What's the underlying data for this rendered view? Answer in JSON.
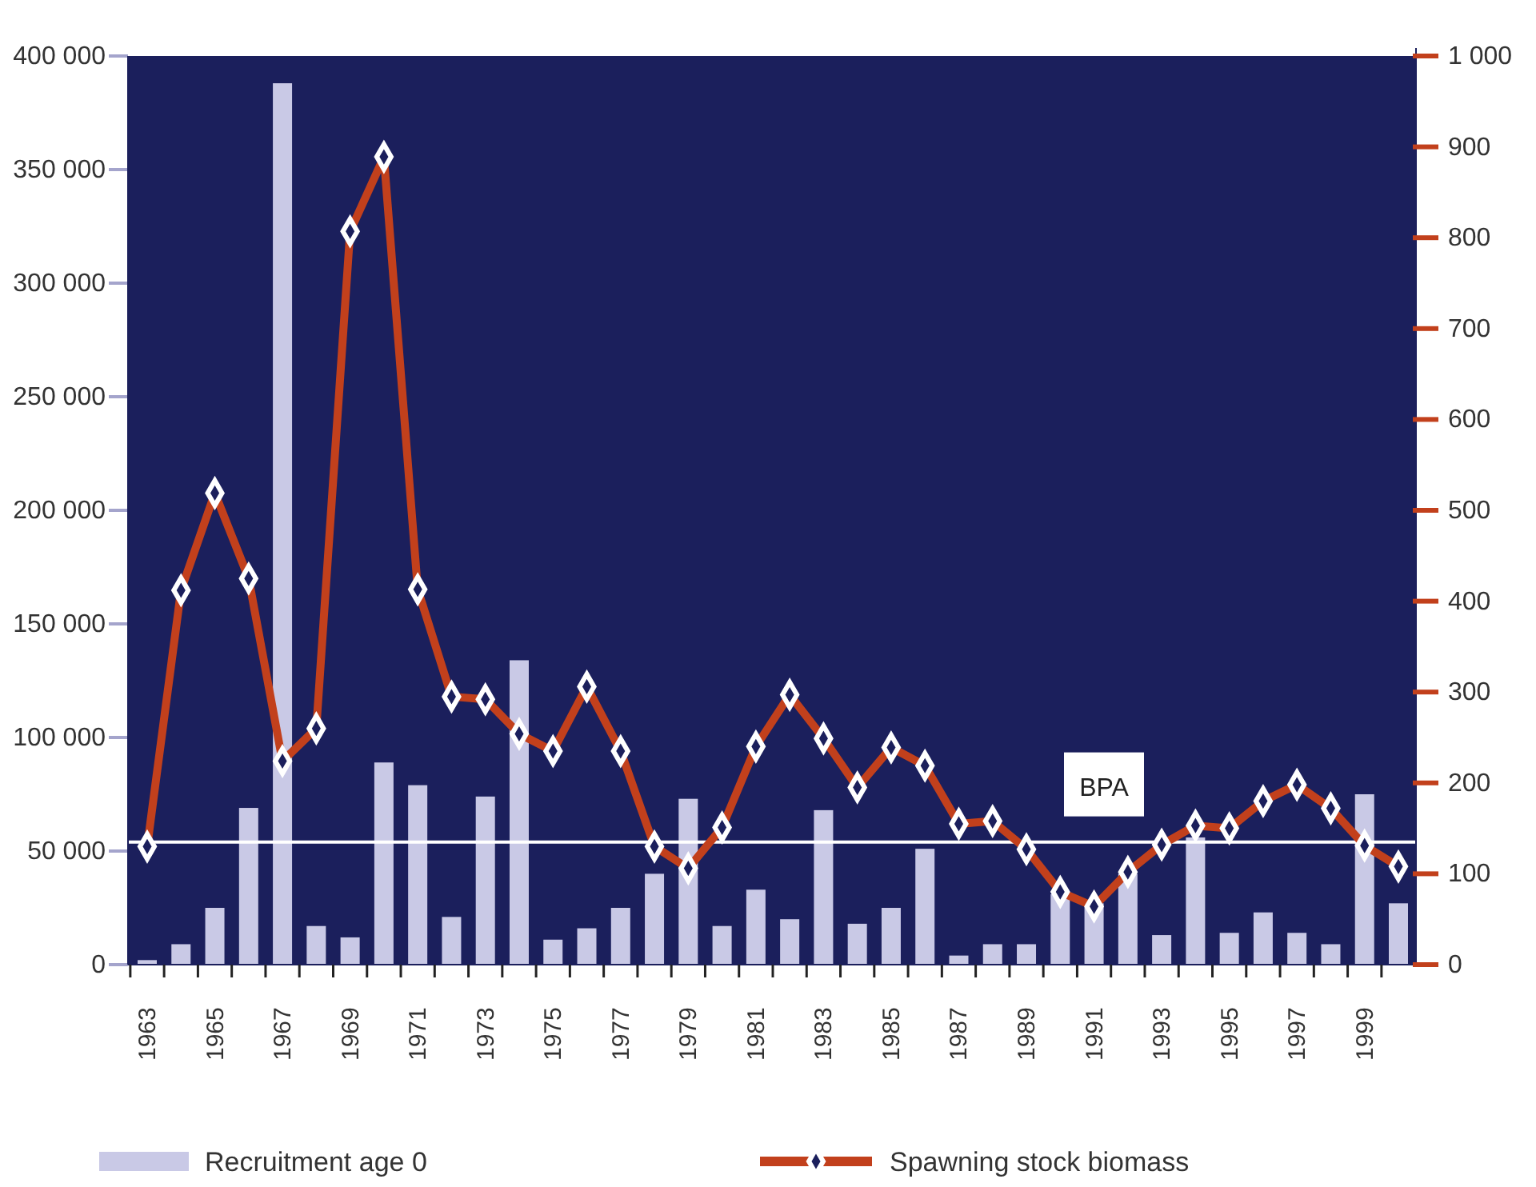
{
  "chart_data": {
    "type": "bar",
    "categories": [
      "1963",
      null,
      "1965",
      null,
      "1967",
      null,
      "1969",
      null,
      "1971",
      null,
      "1973",
      null,
      "1975",
      null,
      "1977",
      null,
      "1979",
      null,
      "1981",
      null,
      "1983",
      null,
      "1985",
      null,
      "1987",
      null,
      "1989",
      null,
      "1991",
      null,
      "1993",
      null,
      "1995",
      null,
      "1997",
      null,
      "1999",
      null
    ],
    "series": [
      {
        "name": "Recruitment age 0",
        "type": "bar",
        "color": "#c9c9e6",
        "values": [
          2000,
          9000,
          25000,
          69000,
          388000,
          17000,
          12000,
          89000,
          79000,
          21000,
          74000,
          134000,
          11000,
          16000,
          25000,
          40000,
          73000,
          17000,
          33000,
          20000,
          68000,
          18000,
          25000,
          51000,
          4000,
          9000,
          9000,
          31000,
          27000,
          40000,
          13000,
          56000,
          14000,
          23000,
          14000,
          9000,
          75000,
          27000
        ]
      },
      {
        "name": "Spawning stock biomass",
        "type": "line",
        "axis": "y2",
        "color": "#c2401c",
        "marker": "diamond",
        "values": [
          130,
          412,
          519,
          425,
          224,
          260,
          807,
          889,
          413,
          295,
          292,
          254,
          235,
          306,
          235,
          130,
          106,
          151,
          240,
          297,
          249,
          195,
          239,
          219,
          155,
          158,
          127,
          80,
          64,
          102,
          132,
          153,
          150,
          180,
          198,
          172,
          131,
          108
        ]
      }
    ],
    "ylim": [
      0,
      400000
    ],
    "yticks": [
      {
        "value": 0,
        "label": "0"
      },
      {
        "value": 50000,
        "label": "50 000"
      },
      {
        "value": 100000,
        "label": "100 000"
      },
      {
        "value": 150000,
        "label": "150 000"
      },
      {
        "value": 200000,
        "label": "200 000"
      },
      {
        "value": 250000,
        "label": "250 000"
      },
      {
        "value": 300000,
        "label": "300 000"
      },
      {
        "value": 350000,
        "label": "350 000"
      },
      {
        "value": 400000,
        "label": "400 000"
      }
    ],
    "y2lim": [
      0,
      1000
    ],
    "y2ticks": [
      0,
      100,
      200,
      300,
      400,
      500,
      600,
      700,
      800,
      900,
      {
        "value": 1000,
        "label": "1 000"
      }
    ],
    "ref_lines": [
      {
        "axis": "y2",
        "value": 135,
        "label": "BPA",
        "color": "#ffffff"
      }
    ],
    "legend": "bottom",
    "grid": false
  }
}
